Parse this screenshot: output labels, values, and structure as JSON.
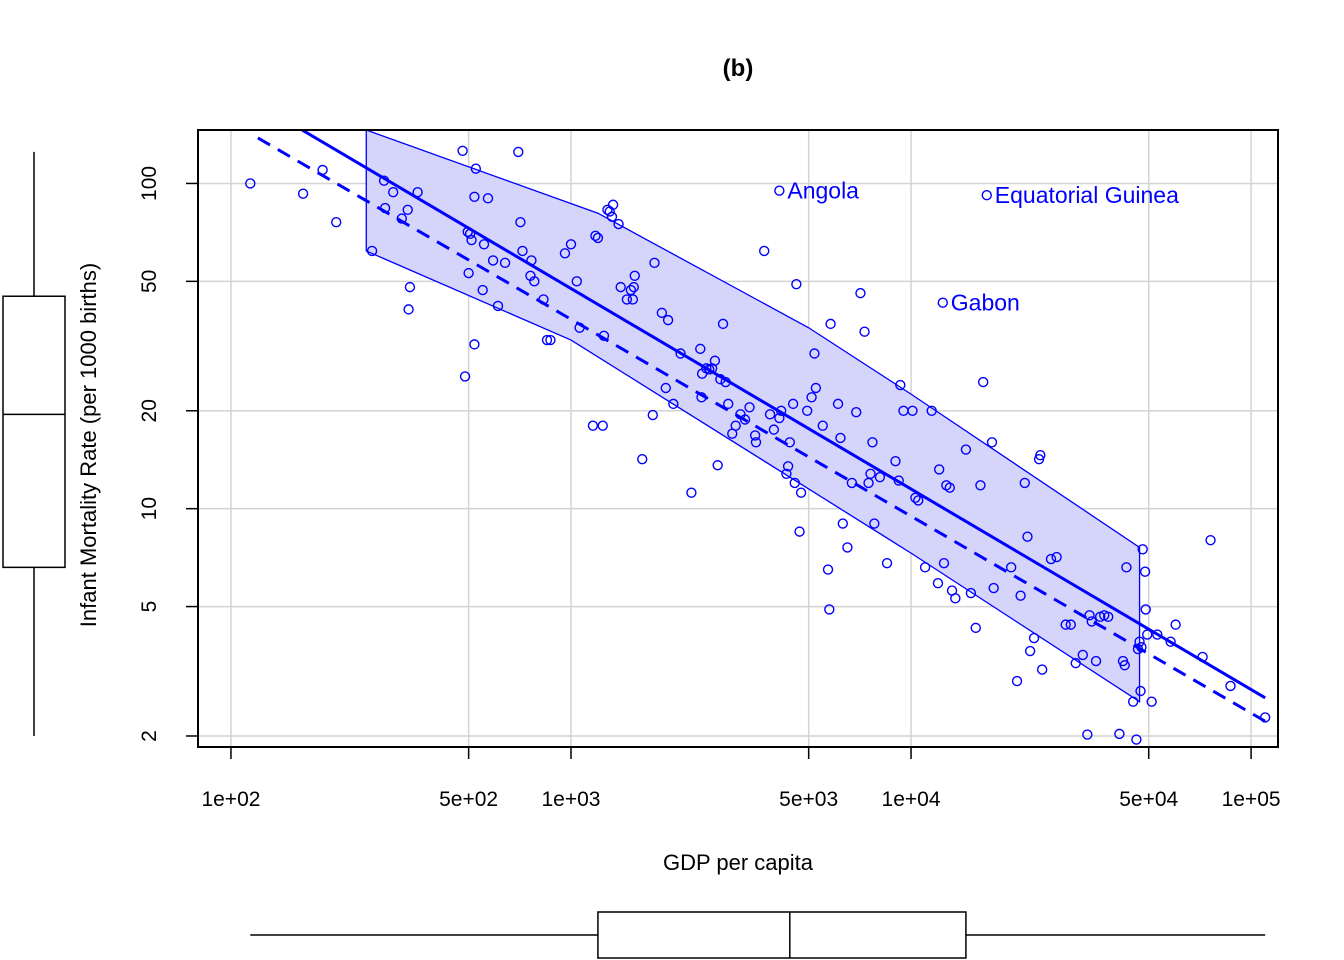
{
  "chart_data": {
    "type": "scatter",
    "title": "(b)",
    "xlabel": "GDP per capita",
    "ylabel": "Infant Mortality Rate (per 1000 births)",
    "x_scale": "log",
    "y_scale": "log",
    "xlim": [
      80,
      120000
    ],
    "ylim": [
      1.85,
      146
    ],
    "x_ticks": [
      100,
      500,
      1000,
      5000,
      10000,
      50000,
      100000
    ],
    "x_tick_labels": [
      "1e+02",
      "5e+02",
      "1e+03",
      "5e+03",
      "1e+04",
      "5e+04",
      "1e+05"
    ],
    "y_ticks": [
      2,
      5,
      10,
      20,
      50,
      100
    ],
    "y_tick_labels": [
      "2",
      "5",
      "10",
      "20",
      "50",
      "100"
    ],
    "grid": true,
    "colors": {
      "points": "#0000ff",
      "band_fill": "#d5d5fb",
      "band_edge": "#0000ff",
      "grid": "#d3d3d3",
      "axis": "#000000"
    },
    "annotations": [
      {
        "label": "Angola",
        "x": 4100,
        "y": 95
      },
      {
        "label": "Equatorial Guinea",
        "x": 16700,
        "y": 92
      },
      {
        "label": "Gabon",
        "x": 12400,
        "y": 43
      }
    ],
    "fit_lines": [
      {
        "style": "solid",
        "points": [
          [
            155,
            150
          ],
          [
            110000,
            2.62
          ]
        ]
      },
      {
        "style": "dashed",
        "points": [
          [
            120,
            138
          ],
          [
            110000,
            2.22
          ]
        ]
      }
    ],
    "band": {
      "upper": [
        [
          250,
          146
        ],
        [
          1200,
          81
        ],
        [
          5000,
          36
        ],
        [
          10000,
          22.5
        ],
        [
          47000,
          7.6
        ]
      ],
      "lower": [
        [
          250,
          62
        ],
        [
          1000,
          33
        ],
        [
          5000,
          11.5
        ],
        [
          10000,
          7.3
        ],
        [
          47000,
          2.55
        ]
      ]
    },
    "points": [
      [
        114,
        100
      ],
      [
        163,
        93
      ],
      [
        186,
        110
      ],
      [
        204,
        76
      ],
      [
        260,
        62
      ],
      [
        282,
        102
      ],
      [
        284,
        84
      ],
      [
        300,
        94
      ],
      [
        318,
        78
      ],
      [
        331,
        83
      ],
      [
        333,
        41
      ],
      [
        336,
        48
      ],
      [
        354,
        94
      ],
      [
        480,
        126
      ],
      [
        488,
        25.5
      ],
      [
        497,
        71
      ],
      [
        500,
        53
      ],
      [
        505,
        70
      ],
      [
        510,
        67
      ],
      [
        520,
        32
      ],
      [
        520,
        91
      ],
      [
        525,
        111
      ],
      [
        550,
        47
      ],
      [
        555,
        65
      ],
      [
        570,
        90
      ],
      [
        590,
        58
      ],
      [
        610,
        42
      ],
      [
        640,
        57
      ],
      [
        700,
        125
      ],
      [
        710,
        76
      ],
      [
        720,
        62
      ],
      [
        760,
        52
      ],
      [
        765,
        58
      ],
      [
        780,
        50
      ],
      [
        830,
        44
      ],
      [
        850,
        33
      ],
      [
        870,
        33
      ],
      [
        960,
        61
      ],
      [
        1000,
        65
      ],
      [
        1040,
        50
      ],
      [
        1060,
        36
      ],
      [
        1160,
        18
      ],
      [
        1180,
        69
      ],
      [
        1200,
        68
      ],
      [
        1240,
        18
      ],
      [
        1250,
        34
      ],
      [
        1280,
        83
      ],
      [
        1300,
        82
      ],
      [
        1320,
        79
      ],
      [
        1330,
        86
      ],
      [
        1380,
        75
      ],
      [
        1400,
        48
      ],
      [
        1460,
        44
      ],
      [
        1500,
        47
      ],
      [
        1520,
        44
      ],
      [
        1530,
        48
      ],
      [
        1540,
        52
      ],
      [
        1620,
        14.2
      ],
      [
        1740,
        19.4
      ],
      [
        1760,
        57
      ],
      [
        1850,
        40
      ],
      [
        1900,
        23.5
      ],
      [
        1930,
        38
      ],
      [
        2000,
        21
      ],
      [
        2100,
        30
      ],
      [
        2260,
        11.2
      ],
      [
        2400,
        31
      ],
      [
        2420,
        22
      ],
      [
        2430,
        26
      ],
      [
        2500,
        27
      ],
      [
        2550,
        26.8
      ],
      [
        2600,
        27
      ],
      [
        2650,
        28.5
      ],
      [
        2700,
        13.6
      ],
      [
        2750,
        25
      ],
      [
        2800,
        37
      ],
      [
        2850,
        24.5
      ],
      [
        2900,
        21
      ],
      [
        2980,
        17
      ],
      [
        3050,
        18
      ],
      [
        3150,
        19.5
      ],
      [
        3250,
        18.8
      ],
      [
        3350,
        20.5
      ],
      [
        3480,
        16.8
      ],
      [
        3500,
        16
      ],
      [
        3700,
        62
      ],
      [
        3850,
        19.5
      ],
      [
        3950,
        17.5
      ],
      [
        4100,
        19
      ],
      [
        4150,
        20
      ],
      [
        4300,
        12.8
      ],
      [
        4350,
        13.5
      ],
      [
        4400,
        16
      ],
      [
        4500,
        21
      ],
      [
        4550,
        12
      ],
      [
        4600,
        49
      ],
      [
        4700,
        8.5
      ],
      [
        4750,
        11.2
      ],
      [
        4950,
        20
      ],
      [
        5100,
        22
      ],
      [
        5200,
        30
      ],
      [
        5250,
        23.5
      ],
      [
        5500,
        18
      ],
      [
        5700,
        6.5
      ],
      [
        5750,
        4.9
      ],
      [
        5800,
        37
      ],
      [
        6100,
        21
      ],
      [
        6200,
        16.5
      ],
      [
        6300,
        9
      ],
      [
        6500,
        7.6
      ],
      [
        6700,
        12
      ],
      [
        6900,
        19.8
      ],
      [
        7100,
        46
      ],
      [
        7300,
        35
      ],
      [
        7500,
        12
      ],
      [
        7600,
        12.8
      ],
      [
        7700,
        16
      ],
      [
        7800,
        9
      ],
      [
        8100,
        12.5
      ],
      [
        8500,
        6.8
      ],
      [
        9000,
        14
      ],
      [
        9200,
        12.2
      ],
      [
        9300,
        24
      ],
      [
        9500,
        20
      ],
      [
        10100,
        20
      ],
      [
        10300,
        10.8
      ],
      [
        10500,
        10.6
      ],
      [
        11000,
        6.6
      ],
      [
        11500,
        20
      ],
      [
        12000,
        5.9
      ],
      [
        12100,
        13.2
      ],
      [
        12500,
        6.8
      ],
      [
        12700,
        11.8
      ],
      [
        13000,
        11.6
      ],
      [
        13200,
        5.6
      ],
      [
        13500,
        5.3
      ],
      [
        14500,
        15.2
      ],
      [
        15000,
        5.5
      ],
      [
        15500,
        4.3
      ],
      [
        16000,
        11.8
      ],
      [
        16300,
        24.5
      ],
      [
        17300,
        16
      ],
      [
        17500,
        5.7
      ],
      [
        19700,
        6.6
      ],
      [
        20500,
        2.95
      ],
      [
        21000,
        5.4
      ],
      [
        21600,
        12
      ],
      [
        22000,
        8.2
      ],
      [
        22400,
        3.65
      ],
      [
        23000,
        4
      ],
      [
        23800,
        14.2
      ],
      [
        24000,
        14.6
      ],
      [
        24300,
        3.2
      ],
      [
        25800,
        7
      ],
      [
        26800,
        7.1
      ],
      [
        28500,
        4.4
      ],
      [
        29500,
        4.4
      ],
      [
        30500,
        3.35
      ],
      [
        32000,
        3.55
      ],
      [
        33000,
        2.02
      ],
      [
        33500,
        4.7
      ],
      [
        34000,
        4.5
      ],
      [
        35000,
        3.4
      ],
      [
        36000,
        4.65
      ],
      [
        37000,
        4.7
      ],
      [
        38000,
        4.65
      ],
      [
        41000,
        2.03
      ],
      [
        42000,
        3.4
      ],
      [
        42500,
        3.3
      ],
      [
        43000,
        6.6
      ],
      [
        45000,
        2.55
      ],
      [
        46000,
        1.95
      ],
      [
        46500,
        3.7
      ],
      [
        47000,
        3.9
      ],
      [
        47300,
        2.75
      ],
      [
        47600,
        3.75
      ],
      [
        48000,
        7.5
      ],
      [
        48800,
        6.4
      ],
      [
        49000,
        4.9
      ],
      [
        49500,
        4.1
      ],
      [
        51000,
        2.55
      ],
      [
        53000,
        4.1
      ],
      [
        58000,
        3.9
      ],
      [
        60000,
        4.4
      ],
      [
        72000,
        3.5
      ],
      [
        76000,
        8
      ],
      [
        87000,
        2.85
      ],
      [
        110000,
        2.28
      ]
    ],
    "marginal_boxplot_y": {
      "whisker_low": 2,
      "q1": 6.6,
      "median": 19.5,
      "q3": 45,
      "whisker_high": 125
    },
    "marginal_boxplot_x": {
      "whisker_low": 114,
      "q1": 1200,
      "median": 4400,
      "q3": 14500,
      "whisker_high": 110000
    }
  }
}
